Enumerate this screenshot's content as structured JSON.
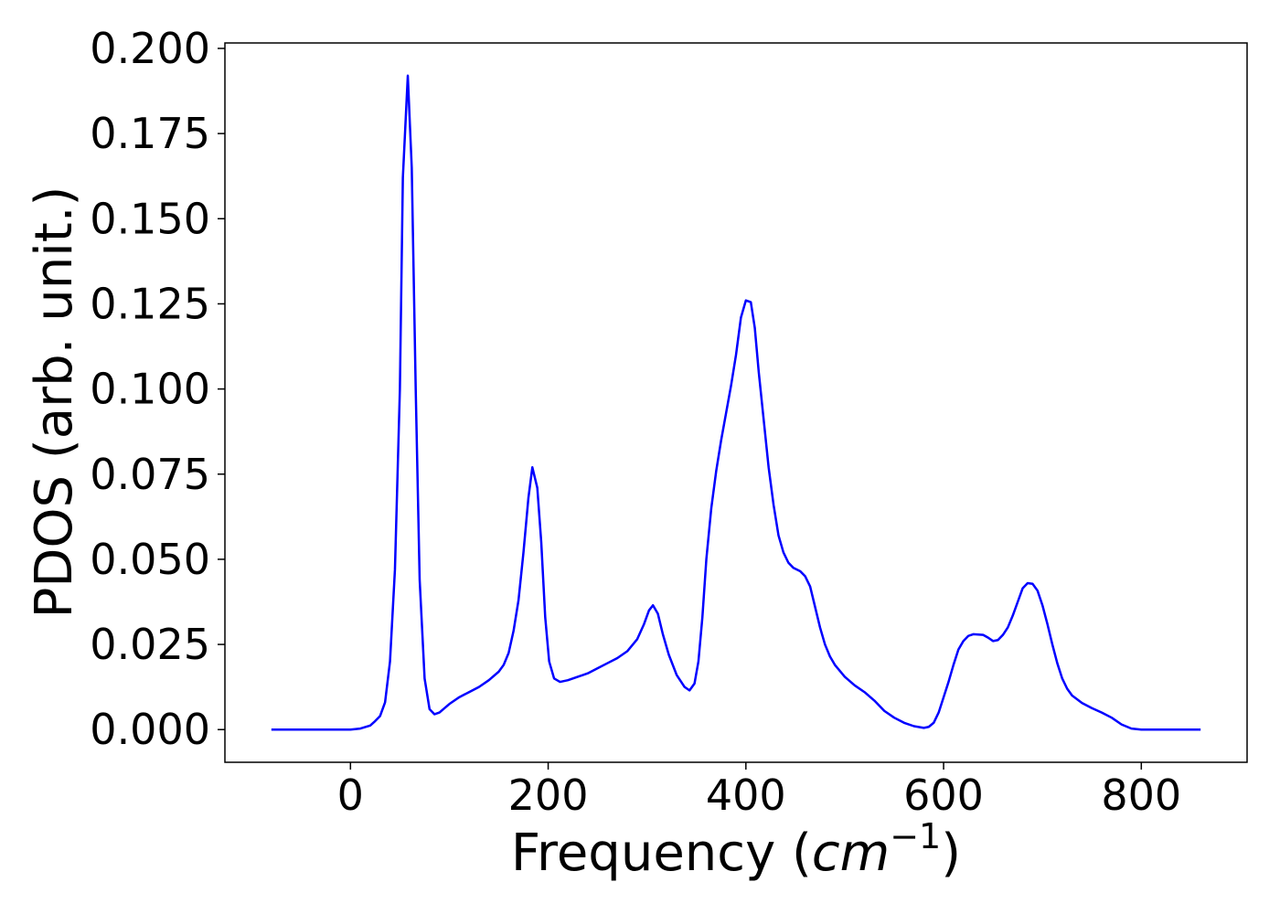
{
  "chart_data": {
    "type": "line",
    "xlabel": [
      "Frequency (",
      "cm",
      "−1",
      ")"
    ],
    "ylabel": "PDOS (arb. unit.)",
    "xlim": [
      -127,
      907
    ],
    "ylim": [
      -0.0096,
      0.2016
    ],
    "xticks": [
      0,
      200,
      400,
      600,
      800
    ],
    "yticks": [
      {
        "value": 0,
        "label": "0.000"
      },
      {
        "value": 0.025,
        "label": "0.025"
      },
      {
        "value": 0.05,
        "label": "0.050"
      },
      {
        "value": 0.075,
        "label": "0.075"
      },
      {
        "value": 0.1,
        "label": "0.100"
      },
      {
        "value": 0.125,
        "label": "0.125"
      },
      {
        "value": 0.15,
        "label": "0.150"
      },
      {
        "value": 0.175,
        "label": "0.175"
      },
      {
        "value": 0.2,
        "label": "0.200"
      }
    ],
    "grid": false,
    "series": [
      {
        "color": "#0000ff",
        "x": [
          -80,
          -40,
          0,
          10,
          20,
          25,
          30,
          35,
          40,
          45,
          50,
          53,
          58,
          62,
          66,
          70,
          75,
          80,
          85,
          90,
          100,
          110,
          120,
          130,
          140,
          150,
          155,
          160,
          165,
          170,
          175,
          180,
          184,
          189,
          193,
          197,
          201,
          206,
          212,
          220,
          230,
          240,
          250,
          260,
          270,
          280,
          290,
          297,
          302,
          306,
          311,
          316,
          322,
          330,
          338,
          343,
          348,
          352,
          356,
          360,
          365,
          370,
          375,
          380,
          385,
          390,
          395,
          400,
          405,
          409,
          413,
          418,
          423,
          428,
          433,
          438,
          443,
          448,
          455,
          460,
          465,
          470,
          475,
          480,
          485,
          490,
          500,
          510,
          520,
          530,
          540,
          550,
          560,
          570,
          580,
          585,
          590,
          595,
          600,
          605,
          610,
          615,
          620,
          625,
          630,
          640,
          645,
          650,
          655,
          660,
          665,
          670,
          675,
          680,
          685,
          690,
          695,
          700,
          705,
          710,
          715,
          720,
          725,
          730,
          740,
          750,
          760,
          770,
          780,
          790,
          800,
          830,
          860
        ],
        "values": [
          0,
          0,
          0,
          0.0003,
          0.0012,
          0.0025,
          0.004,
          0.008,
          0.02,
          0.047,
          0.1,
          0.162,
          0.192,
          0.165,
          0.1,
          0.044,
          0.015,
          0.006,
          0.0045,
          0.005,
          0.0075,
          0.0095,
          0.011,
          0.0125,
          0.0145,
          0.017,
          0.019,
          0.0225,
          0.029,
          0.038,
          0.052,
          0.068,
          0.077,
          0.071,
          0.055,
          0.033,
          0.02,
          0.015,
          0.014,
          0.0145,
          0.0155,
          0.0165,
          0.018,
          0.0195,
          0.021,
          0.023,
          0.0265,
          0.031,
          0.035,
          0.0365,
          0.034,
          0.028,
          0.022,
          0.016,
          0.0125,
          0.0115,
          0.0135,
          0.02,
          0.033,
          0.05,
          0.065,
          0.076,
          0.085,
          0.093,
          0.101,
          0.11,
          0.121,
          0.126,
          0.1255,
          0.118,
          0.105,
          0.091,
          0.077,
          0.066,
          0.057,
          0.052,
          0.049,
          0.0475,
          0.0465,
          0.045,
          0.042,
          0.036,
          0.03,
          0.025,
          0.0215,
          0.019,
          0.0155,
          0.013,
          0.011,
          0.0085,
          0.0055,
          0.0035,
          0.002,
          0.001,
          0.0005,
          0.0008,
          0.002,
          0.005,
          0.0095,
          0.014,
          0.019,
          0.0235,
          0.026,
          0.0275,
          0.028,
          0.0278,
          0.027,
          0.026,
          0.0263,
          0.0278,
          0.03,
          0.0335,
          0.0375,
          0.0415,
          0.043,
          0.0428,
          0.0408,
          0.0365,
          0.031,
          0.025,
          0.0195,
          0.015,
          0.012,
          0.01,
          0.0078,
          0.0063,
          0.005,
          0.0035,
          0.0015,
          0.0003,
          0,
          0,
          0
        ]
      }
    ]
  }
}
